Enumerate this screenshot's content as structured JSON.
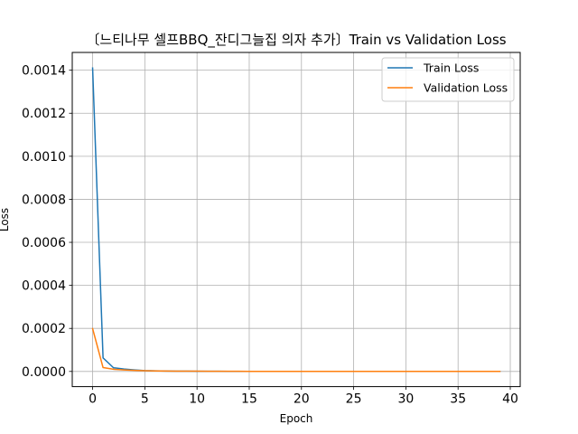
{
  "chart_data": {
    "type": "line",
    "title": "〔느티나무 셀프BBQ_잔디그늘집 의자 추가〕Train vs Validation Loss",
    "xlabel": "Epoch",
    "ylabel": "Loss",
    "xlim": [
      -1.95,
      40.95
    ],
    "ylim": [
      -7.06e-05,
      0.0014826
    ],
    "x_ticks": [
      0,
      5,
      10,
      15,
      20,
      25,
      30,
      35,
      40
    ],
    "y_ticks": [
      0.0,
      0.0002,
      0.0004,
      0.0006,
      0.0008,
      0.001,
      0.0012,
      0.0014
    ],
    "y_tick_labels": [
      "0.0000",
      "0.0002",
      "0.0004",
      "0.0006",
      "0.0008",
      "0.0010",
      "0.0012",
      "0.0014"
    ],
    "grid": true,
    "legend_position": "upper right",
    "x": [
      0,
      1,
      2,
      3,
      4,
      5,
      6,
      7,
      8,
      9,
      10,
      11,
      12,
      13,
      14,
      15,
      16,
      17,
      18,
      19,
      20,
      21,
      22,
      23,
      24,
      25,
      26,
      27,
      28,
      29,
      30,
      31,
      32,
      33,
      34,
      35,
      36,
      37,
      38,
      39
    ],
    "series": [
      {
        "name": "Train Loss",
        "color": "#1f77b4",
        "values": [
          0.00141,
          6.3e-05,
          1.7e-05,
          1.1e-05,
          7e-06,
          4e-06,
          3e-06,
          2e-06,
          1.5e-06,
          1e-06,
          8e-07,
          6e-07,
          5e-07,
          4e-07,
          3e-07,
          3e-07,
          2e-07,
          2e-07,
          2e-07,
          1e-07,
          1e-07,
          1e-07,
          1e-07,
          1e-07,
          1e-07,
          1e-07,
          1e-07,
          1e-07,
          1e-07,
          1e-07,
          1e-07,
          1e-07,
          1e-07,
          1e-07,
          1e-07,
          1e-07,
          1e-07,
          1e-07,
          1e-07,
          1e-07
        ]
      },
      {
        "name": "Validation Loss",
        "color": "#ff7f0e",
        "values": [
          0.000199,
          1.8e-05,
          1e-05,
          7e-06,
          5e-06,
          3.5e-06,
          2.5e-06,
          2e-06,
          1.5e-06,
          1.2e-06,
          1e-06,
          8e-07,
          7e-07,
          6e-07,
          5e-07,
          4e-07,
          4e-07,
          3e-07,
          3e-07,
          3e-07,
          2e-07,
          2e-07,
          2e-07,
          2e-07,
          2e-07,
          2e-07,
          1e-07,
          1e-07,
          1e-07,
          1e-07,
          1e-07,
          1e-07,
          1e-07,
          1e-07,
          1e-07,
          1e-07,
          1e-07,
          1e-07,
          1e-07,
          1e-07
        ]
      }
    ]
  }
}
